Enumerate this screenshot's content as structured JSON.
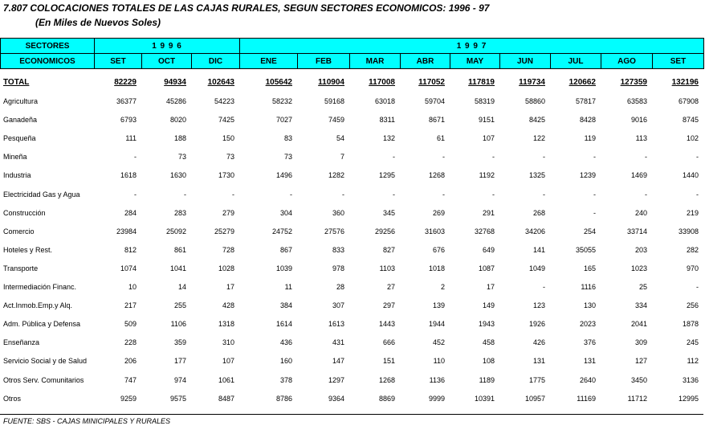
{
  "header": {
    "title": "7.807  COLOCACIONES TOTALES DE LAS CAJAS RURALES, SEGUN SECTORES ECONOMICOS: 1996 - 97",
    "subtitle": "(En Miles de Nuevos Soles)"
  },
  "table": {
    "stub_header": [
      "SECTORES",
      "ECONOMICOS"
    ],
    "years": [
      {
        "label": "1 9 9 6",
        "span": 3
      },
      {
        "label": "1 9 9 7",
        "span": 9
      }
    ],
    "columns": [
      "SET",
      "OCT",
      "DIC",
      "ENE",
      "FEB",
      "MAR",
      "ABR",
      "MAY",
      "JUN",
      "JUL",
      "AGO",
      "SET"
    ],
    "rows": [
      [
        "TOTAL",
        82229,
        94934,
        102643,
        105642,
        110904,
        117008,
        117052,
        117819,
        119734,
        120662,
        127359,
        132196
      ],
      [
        "Agricultura",
        36377,
        45286,
        54223,
        58232,
        59168,
        63018,
        59704,
        58319,
        58860,
        57817,
        63583,
        67908
      ],
      [
        "Ganadeña",
        6793,
        8020,
        7425,
        7027,
        7459,
        8311,
        8671,
        9151,
        8425,
        8428,
        9016,
        8745
      ],
      [
        "Pesqueña",
        111,
        188,
        150,
        83,
        54,
        132,
        61,
        107,
        122,
        119,
        113,
        102
      ],
      [
        "Mineña",
        "-",
        73,
        73,
        73,
        7,
        "-",
        "-",
        "-",
        "-",
        "-",
        "-",
        "-"
      ],
      [
        "Industria",
        1618,
        1630,
        1730,
        1496,
        1282,
        1295,
        1268,
        1192,
        1325,
        1239,
        1469,
        1440
      ],
      [
        "Electricidad Gas y Agua",
        "-",
        "-",
        "-",
        "-",
        "-",
        "-",
        "-",
        "-",
        "-",
        "-",
        "-",
        "-"
      ],
      [
        "Construcción",
        284,
        283,
        279,
        304,
        360,
        345,
        269,
        291,
        268,
        "-",
        240,
        219
      ],
      [
        "Comercio",
        23984,
        25092,
        25279,
        24752,
        27576,
        29256,
        31603,
        32768,
        34206,
        254,
        33714,
        33908
      ],
      [
        "Hoteles y Rest.",
        812,
        861,
        728,
        867,
        833,
        827,
        676,
        649,
        141,
        35055,
        203,
        282
      ],
      [
        "Transporte",
        1074,
        1041,
        1028,
        1039,
        978,
        1103,
        1018,
        1087,
        1049,
        165,
        1023,
        970
      ],
      [
        "Intermediación Financ.",
        10,
        14,
        17,
        11,
        28,
        27,
        2,
        17,
        "-",
        1116,
        25,
        "-"
      ],
      [
        "Act.Inmob.Emp.y Alq.",
        217,
        255,
        428,
        384,
        307,
        297,
        139,
        149,
        123,
        130,
        334,
        256
      ],
      [
        "Adm. Pública y Defensa",
        509,
        1106,
        1318,
        1614,
        1613,
        1443,
        1944,
        1943,
        1926,
        2023,
        2041,
        1878
      ],
      [
        "Enseñanza",
        228,
        359,
        310,
        436,
        431,
        666,
        452,
        458,
        426,
        376,
        309,
        245
      ],
      [
        "Servicio Social y de Salud",
        206,
        177,
        107,
        160,
        147,
        151,
        110,
        108,
        131,
        131,
        127,
        112
      ],
      [
        "Otros Serv. Comunitarios",
        747,
        974,
        1061,
        378,
        1297,
        1268,
        1136,
        1189,
        1775,
        2640,
        3450,
        3136
      ],
      [
        "Otros",
        9259,
        9575,
        8487,
        8786,
        9364,
        8869,
        9999,
        10391,
        10957,
        11169,
        11712,
        12995
      ]
    ]
  },
  "footer": {
    "source": "FUENTE: SBS - CAJAS MINICIPALES Y RURALES"
  }
}
